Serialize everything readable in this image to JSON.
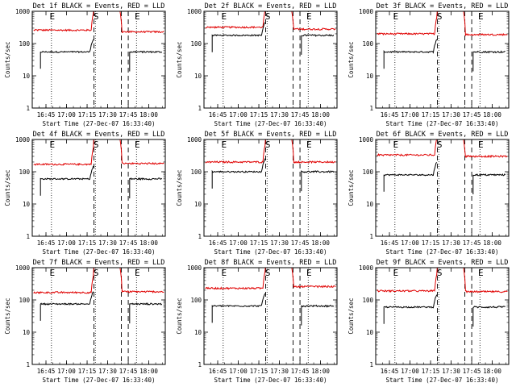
{
  "figure": {
    "background": "#ffffff"
  },
  "chart_data": {
    "type": "line",
    "y_scale": "log",
    "ylim": [
      1,
      1000
    ],
    "y_ticks": [
      1,
      10,
      100,
      1000
    ],
    "y_tick_labels": [
      "1",
      "10",
      "100",
      "1000"
    ],
    "ylabel": "Counts/sec",
    "xlabel": "Start Time (27-Dec-07 16:33:40)",
    "xlim": [
      "16:35",
      "18:12"
    ],
    "x_ticks": [
      "16:45",
      "17:00",
      "17:15",
      "17:30",
      "17:45",
      "18:00"
    ],
    "event_markers": [
      {
        "label": "E",
        "time": "16:49"
      },
      {
        "label": "S",
        "time": "17:21"
      },
      {
        "label": "E",
        "time": "17:51"
      }
    ],
    "dashed_lines": [
      "17:20",
      "17:40",
      "17:45"
    ],
    "series_colors": {
      "events": "#000000",
      "lld": "#e00000"
    },
    "panels": [
      {
        "title": "Det 1f BLACK = Events, RED = LLD",
        "events_level": 55,
        "lld_level": 260,
        "lld_peak_level": 1000,
        "lld_post_level": 230
      },
      {
        "title": "Det 2f BLACK = Events, RED = LLD",
        "events_level": 180,
        "lld_level": 320,
        "lld_peak_level": 1000,
        "lld_post_level": 280
      },
      {
        "title": "Det 3f BLACK = Events, RED = LLD",
        "events_level": 55,
        "lld_level": 200,
        "lld_peak_level": 1000,
        "lld_post_level": 190
      },
      {
        "title": "Det 4f BLACK = Events, RED = LLD",
        "events_level": 60,
        "lld_level": 170,
        "lld_peak_level": 1000,
        "lld_post_level": 180
      },
      {
        "title": "Det 5f BLACK = Events, RED = LLD",
        "events_level": 100,
        "lld_level": 200,
        "lld_peak_level": 1000,
        "lld_post_level": 200
      },
      {
        "title": "Det 6f BLACK = Events, RED = LLD",
        "events_level": 80,
        "lld_level": 330,
        "lld_peak_level": 1000,
        "lld_post_level": 300
      },
      {
        "title": "Det 7f BLACK = Events, RED = LLD",
        "events_level": 75,
        "lld_level": 170,
        "lld_peak_level": 1000,
        "lld_post_level": 180
      },
      {
        "title": "Det 8f BLACK = Events, RED = LLD",
        "events_level": 65,
        "lld_level": 230,
        "lld_peak_level": 1000,
        "lld_post_level": 260
      },
      {
        "title": "Det 9f BLACK = Events, RED = LLD",
        "events_level": 60,
        "lld_level": 190,
        "lld_peak_level": 1000,
        "lld_post_level": 180
      }
    ]
  }
}
